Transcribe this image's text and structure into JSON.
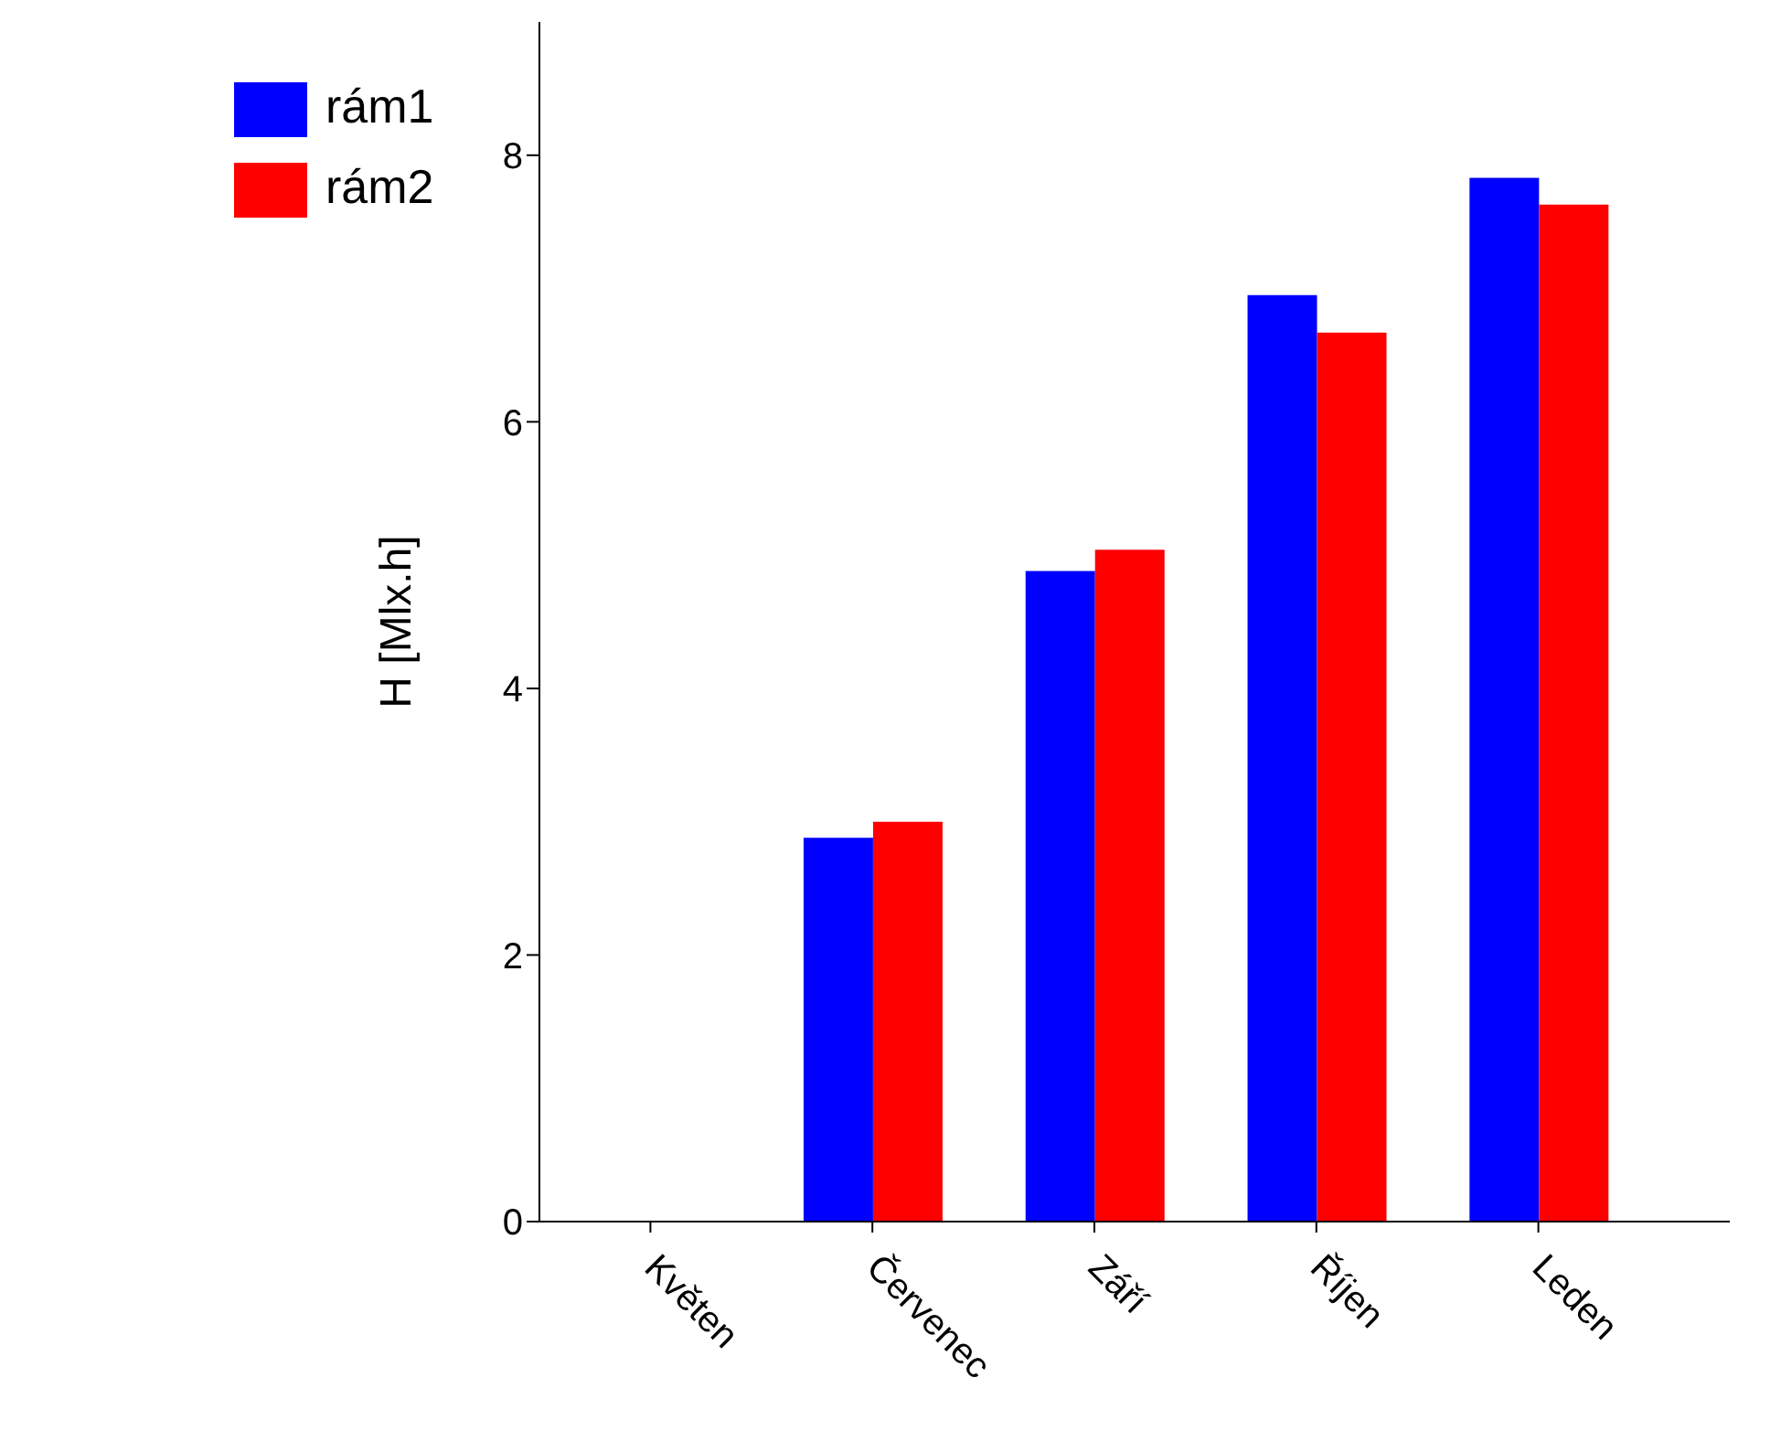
{
  "chart_data": {
    "type": "bar",
    "ylabel": "H [Mlx.h]",
    "categories": [
      "Květen",
      "Červenec",
      "Září",
      "Říjen",
      "Leden"
    ],
    "series": [
      {
        "name": "rám1",
        "color": "#0000ff",
        "values": [
          null,
          2.88,
          4.88,
          6.95,
          7.83
        ]
      },
      {
        "name": "rám2",
        "color": "#ff0000",
        "values": [
          null,
          3.0,
          5.04,
          6.67,
          7.63
        ]
      }
    ],
    "ylim": [
      0,
      9
    ],
    "yticks": [
      0,
      2,
      4,
      6,
      8
    ],
    "grid": false,
    "legend": "top left"
  }
}
